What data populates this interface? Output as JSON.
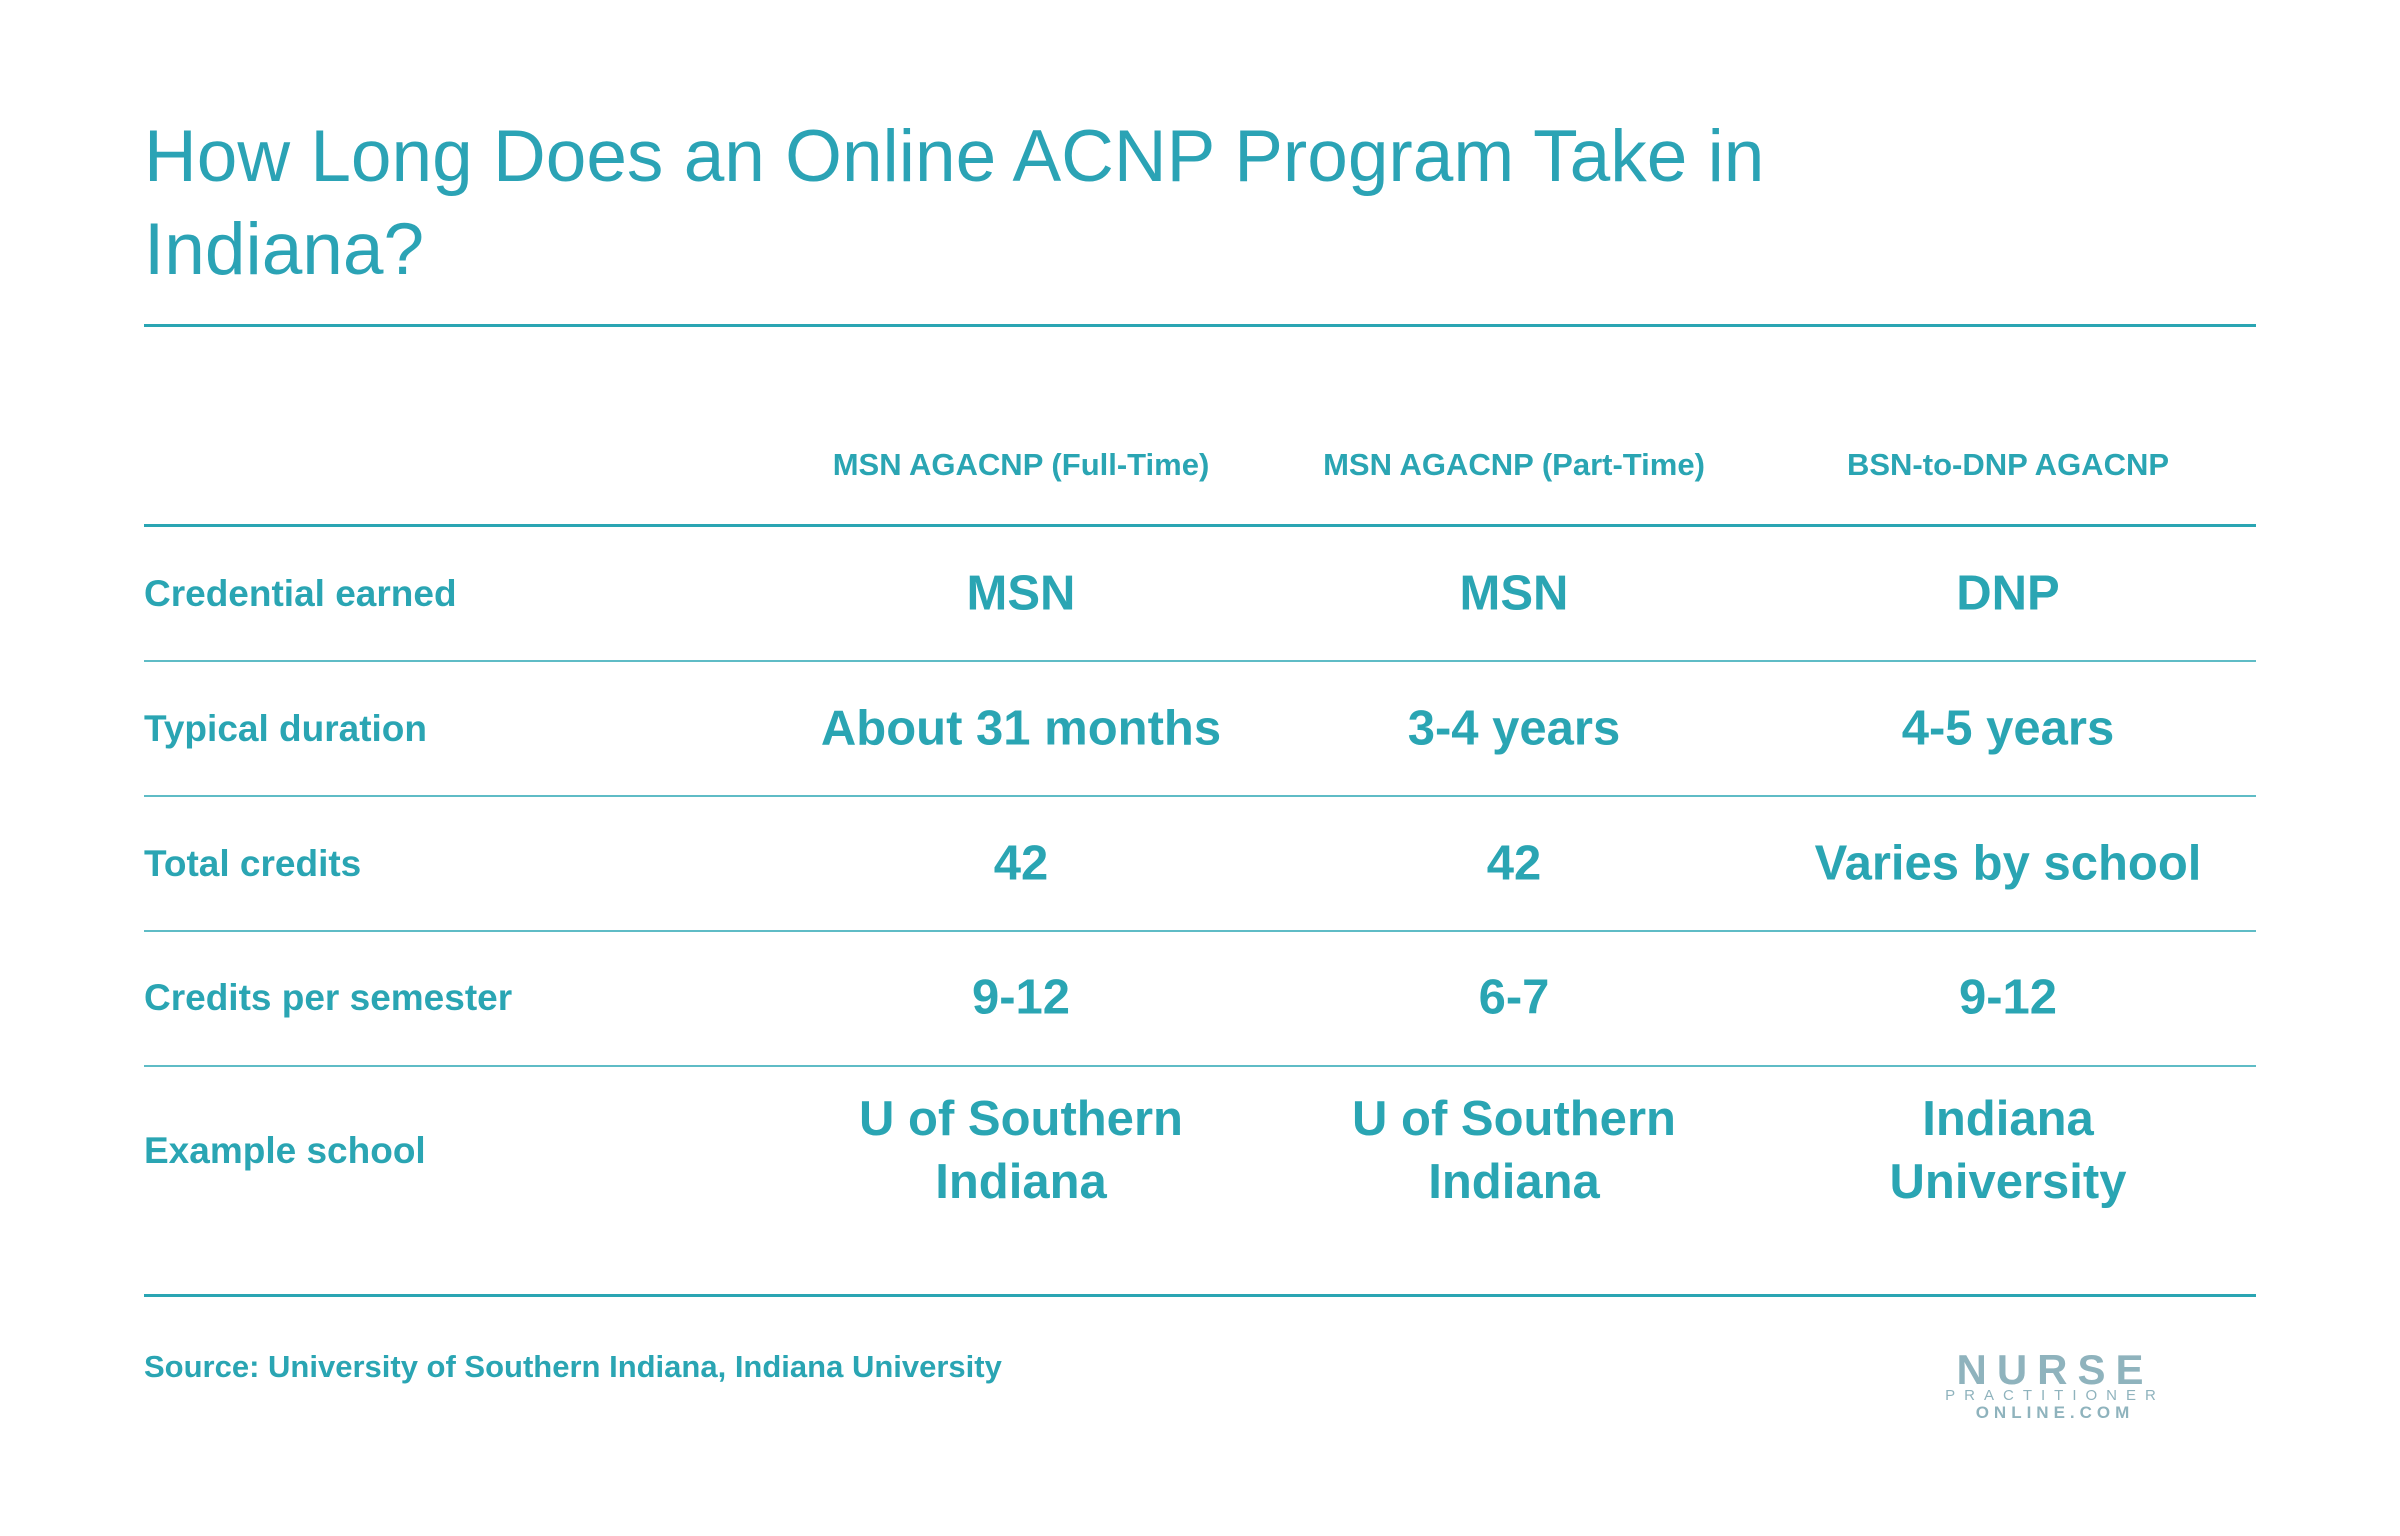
{
  "header": {
    "title": "How Long Does an Online ACNP Program Take in Indiana?"
  },
  "table": {
    "columns": [
      "MSN AGACNP (Full-Time)",
      "MSN AGACNP (Part-Time)",
      "BSN-to-DNP AGACNP"
    ],
    "rows": [
      {
        "label": "Credential earned",
        "cells": [
          "MSN",
          "MSN",
          "DNP"
        ]
      },
      {
        "label": "Typical duration",
        "cells": [
          "About 31 months",
          "3-4 years",
          "4-5 years"
        ]
      },
      {
        "label": "Total credits",
        "cells": [
          "42",
          "42",
          "Varies by school"
        ]
      },
      {
        "label": "Credits per semester",
        "cells": [
          "9-12",
          "6-7",
          "9-12"
        ]
      },
      {
        "label": "Example school",
        "cells": [
          "U of Southern Indiana",
          "U of Southern Indiana",
          "Indiana University"
        ]
      }
    ]
  },
  "footer": {
    "source": "Source: University of Southern Indiana, Indiana University",
    "logo": {
      "line1": "NURSE",
      "line2": "PRACTITIONER",
      "line3": "ONLINE.COM"
    }
  }
}
